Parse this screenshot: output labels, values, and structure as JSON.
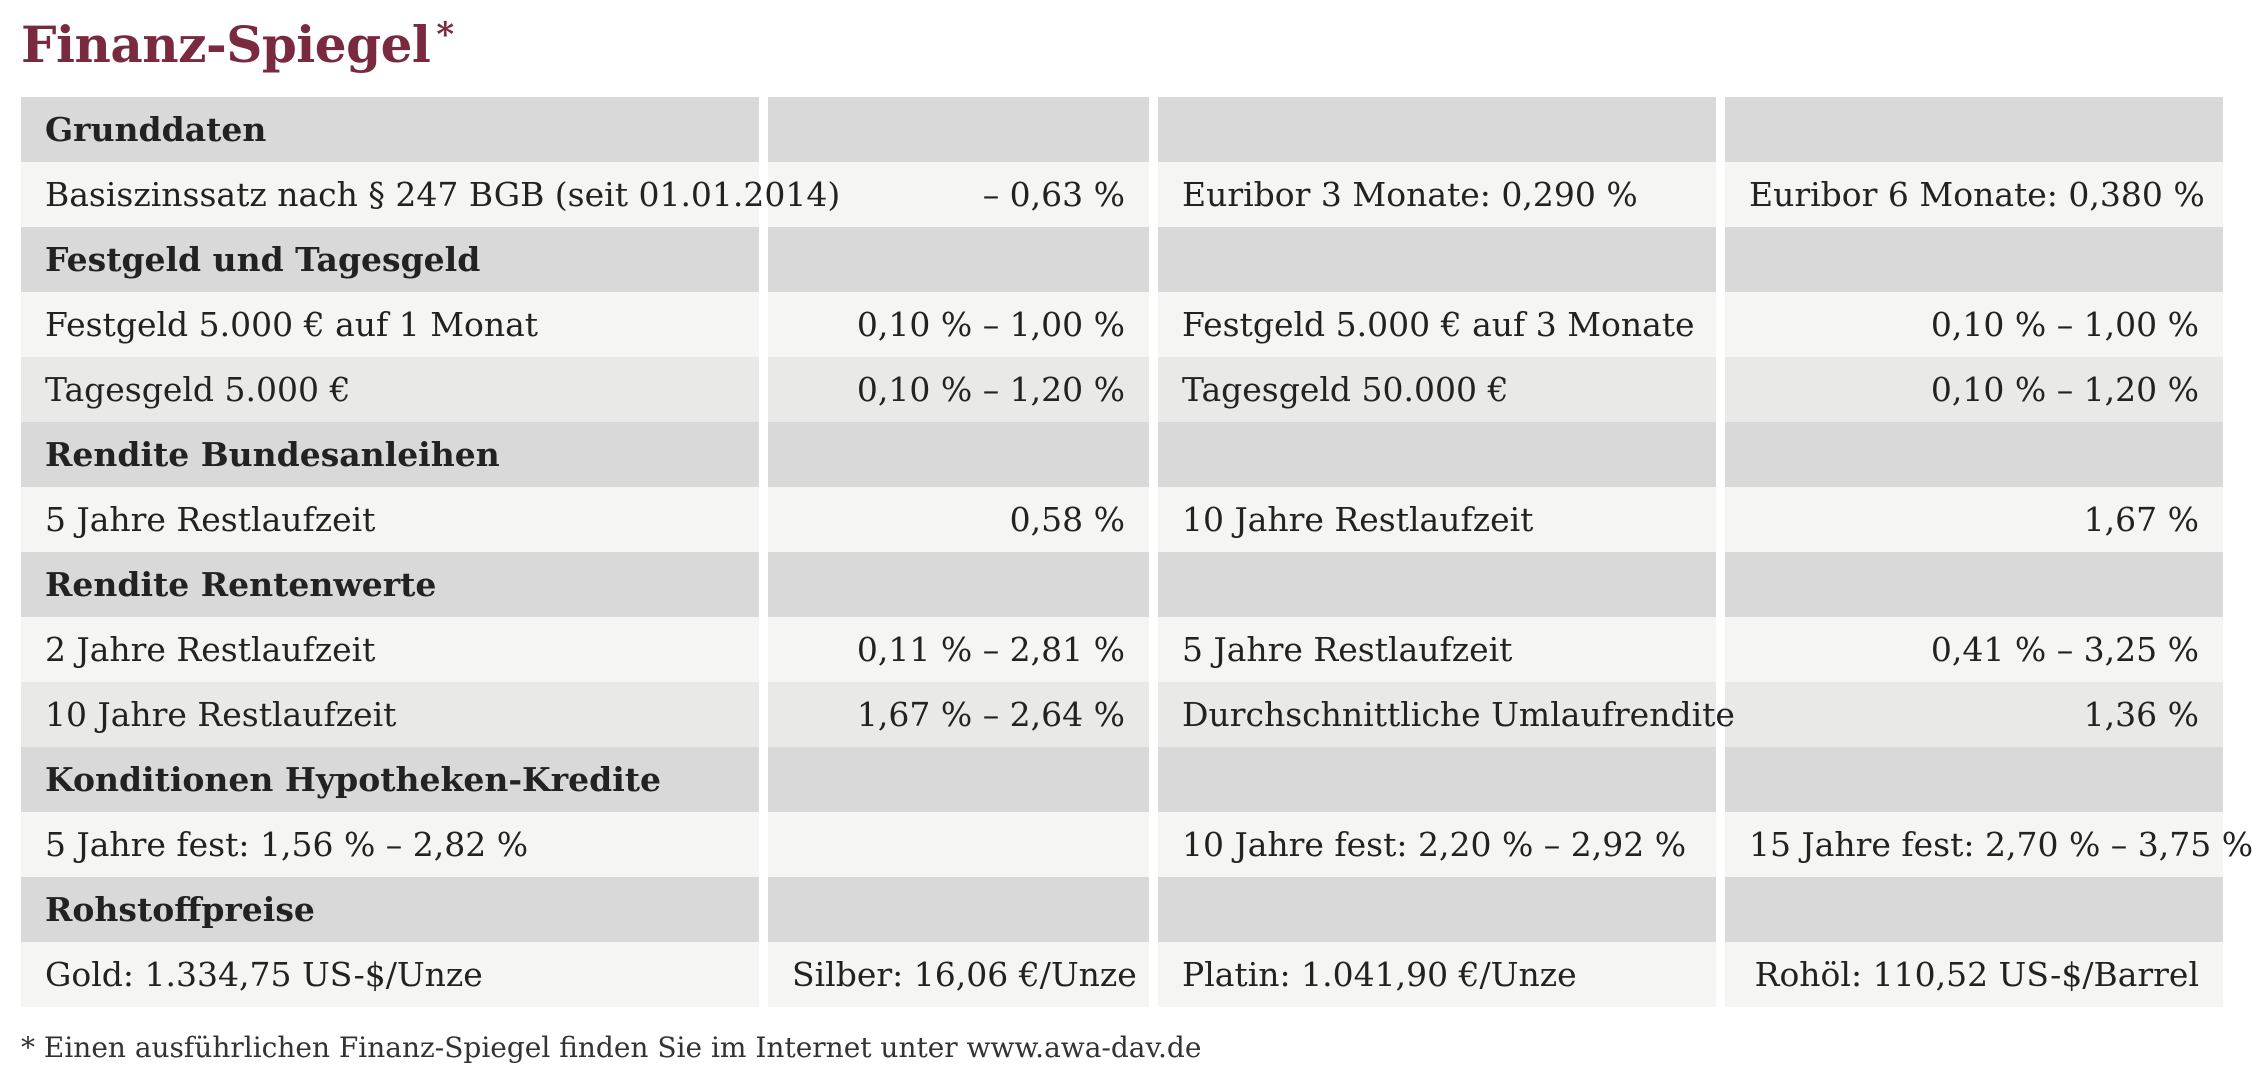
{
  "title": "Finanz-Spiegel",
  "title_mark": "*",
  "sections": [
    {
      "heading": "Grunddaten",
      "rows": [
        [
          "Basiszinssatz nach § 247 BGB (seit 01.01.2014)",
          "– 0,63 %",
          "Euribor 3 Monate: 0,290 %",
          "Euribor 6 Monate: 0,380 %"
        ]
      ]
    },
    {
      "heading": "Festgeld und Tagesgeld",
      "rows": [
        [
          "Festgeld 5.000 € auf 1 Monat",
          "0,10 % – 1,00 %",
          "Festgeld 5.000 € auf 3 Monate",
          "0,10 % – 1,00 %"
        ],
        [
          "Tagesgeld 5.000 €",
          "0,10 % – 1,20 %",
          "Tagesgeld 50.000 €",
          "0,10 % – 1,20 %"
        ]
      ]
    },
    {
      "heading": "Rendite Bundesanleihen",
      "rows": [
        [
          "5 Jahre Restlaufzeit",
          "0,58 %",
          "10 Jahre Restlaufzeit",
          "1,67 %"
        ]
      ]
    },
    {
      "heading": "Rendite Rentenwerte",
      "rows": [
        [
          "2 Jahre Restlaufzeit",
          "0,11 % – 2,81 %",
          "5 Jahre Restlaufzeit",
          "0,41 % – 3,25 %"
        ],
        [
          "10 Jahre Restlaufzeit",
          "1,67 % – 2,64 %",
          "Durchschnittliche Umlaufrendite",
          "1,36 %"
        ]
      ]
    },
    {
      "heading": "Konditionen Hypotheken-Kredite",
      "rows": [
        [
          "5 Jahre fest: 1,56 % – 2,82 %",
          "",
          "10 Jahre fest: 2,20 % – 2,92 %",
          "15 Jahre fest: 2,70 % – 3,75 %"
        ]
      ]
    },
    {
      "heading": "Rohstoffpreise",
      "rows": [
        [
          "Gold: 1.334,75 US-$/Unze",
          "Silber: 16,06 €/Unze",
          "Platin: 1.041,90 €/Unze",
          "Rohöl: 110,52 US-$/Barrel"
        ]
      ]
    }
  ],
  "footnote": "* Einen ausführlichen Finanz-Spiegel finden Sie im Internet unter www.awa-dav.de"
}
